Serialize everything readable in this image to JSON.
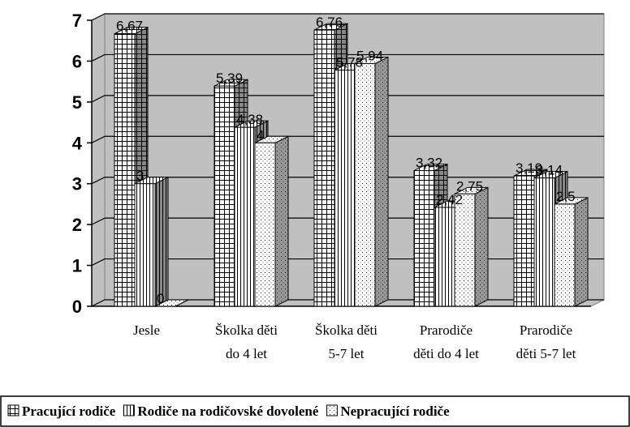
{
  "chart_data": {
    "type": "bar3d",
    "categories": [
      [
        "Jesle"
      ],
      [
        "Školka děti",
        "do 4 let"
      ],
      [
        "Školka děti",
        "5-7 let"
      ],
      [
        "Prarodiče",
        "děti do 4 let"
      ],
      [
        "Prarodiče",
        "děti 5-7 let"
      ]
    ],
    "series": [
      {
        "name": "Pracující rodiče",
        "values": [
          6.67,
          5.39,
          6.76,
          3.32,
          3.19
        ],
        "value_labels": [
          "6,67",
          "5,39",
          "6,76",
          "3,32",
          "3,19"
        ]
      },
      {
        "name": "Rodiče na rodičovské dovolené",
        "values": [
          3,
          4.38,
          5.78,
          2.42,
          3.14
        ],
        "value_labels": [
          "3",
          "4,38",
          "5,78",
          "2,42",
          "3,14"
        ]
      },
      {
        "name": "Nepracující rodiče",
        "values": [
          0,
          4,
          5.94,
          2.75,
          2.5
        ],
        "value_labels": [
          "0",
          "4",
          "5,94",
          "2,75",
          "2,5"
        ]
      }
    ],
    "ylim": [
      0,
      7
    ],
    "yticks": [
      0,
      1,
      2,
      3,
      4,
      5,
      6,
      7
    ],
    "grid": true,
    "legend": "bottom"
  }
}
